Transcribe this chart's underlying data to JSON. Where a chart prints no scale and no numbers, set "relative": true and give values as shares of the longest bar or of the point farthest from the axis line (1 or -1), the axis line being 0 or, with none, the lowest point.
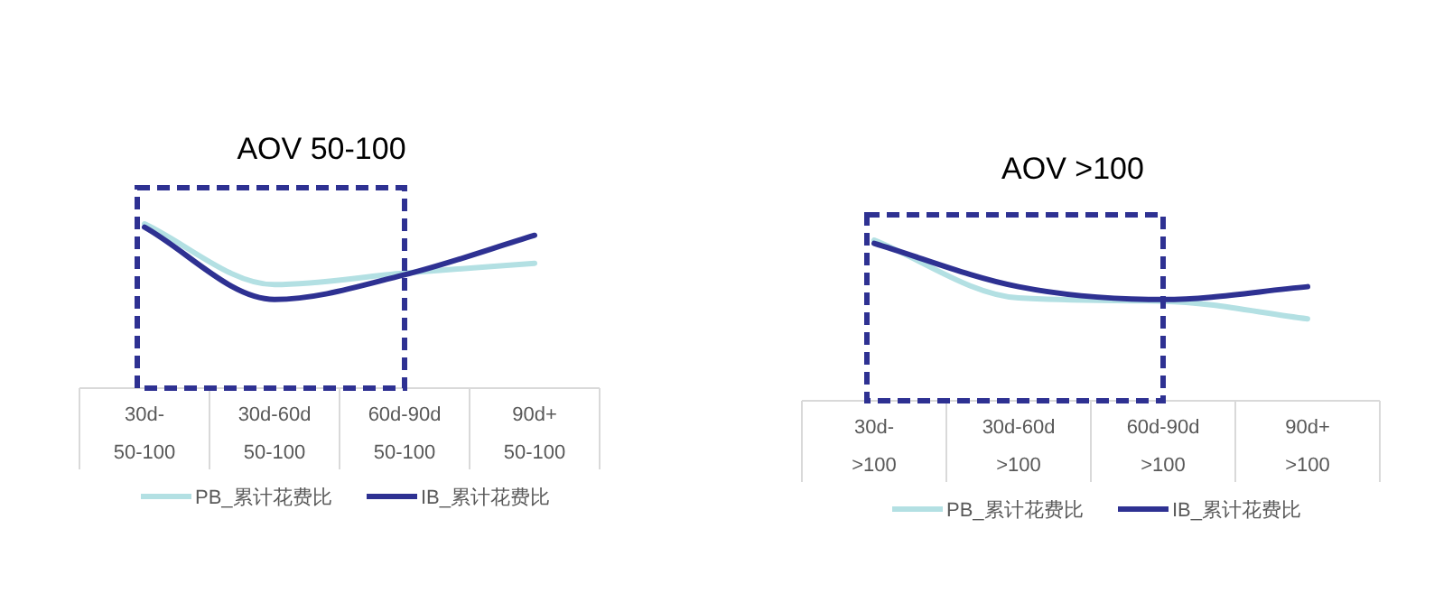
{
  "chart_data": [
    {
      "type": "line",
      "title": "AOV 50-100",
      "relative": true,
      "legend": "bottom",
      "categories": [
        "30d-\n50-100",
        "30d-60d\n50-100",
        "60d-90d\n50-100",
        "90d+\n50-100"
      ],
      "series": [
        {
          "name": "PB_累计花费比",
          "color": "#b3e0e3",
          "values": [
            1,
            0.63,
            0.7,
            0.76
          ]
        },
        {
          "name": "IB_累计花费比",
          "color": "#2e3192",
          "values": [
            0.98,
            0.54,
            0.69,
            0.93
          ]
        }
      ]
    },
    {
      "type": "line",
      "title": "AOV >100",
      "relative": true,
      "legend": "bottom",
      "categories": [
        "30d-\n>100",
        "30d-60d\n>100",
        "60d-90d\n>100",
        "90d+\n>100"
      ],
      "series": [
        {
          "name": "PB_累计花费比",
          "color": "#b3e0e3",
          "values": [
            1,
            0.64,
            0.62,
            0.51
          ]
        },
        {
          "name": "IB_累计花费比",
          "color": "#2e3192",
          "values": [
            0.98,
            0.71,
            0.63,
            0.71
          ]
        }
      ]
    }
  ]
}
